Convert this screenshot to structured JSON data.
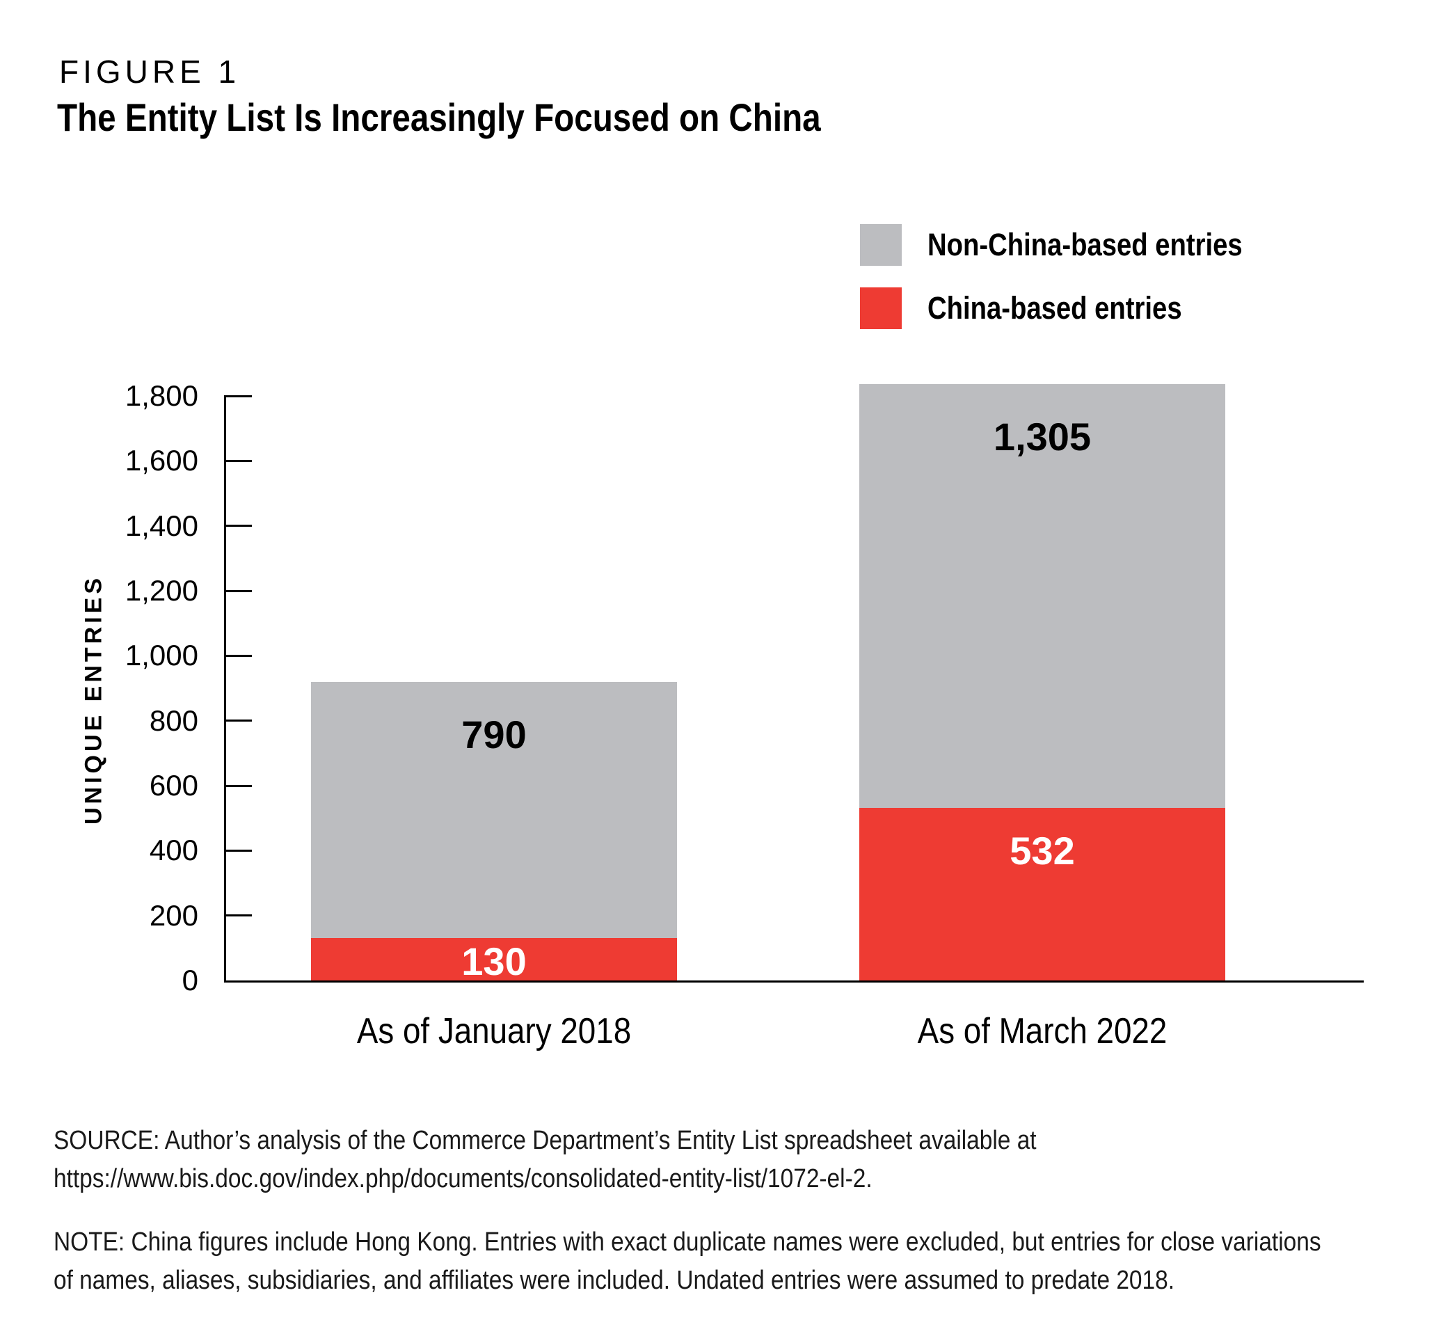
{
  "figure": {
    "kicker": "FIGURE 1",
    "title": "The Entity List Is Increasingly Focused on China"
  },
  "colors": {
    "china_red": "#EE3B33",
    "non_china_gray": "#BCBDC0",
    "axis_black": "#000000",
    "body_text": "#1A1A1A"
  },
  "legend": [
    {
      "label": "Non-China-based entries",
      "color": "#BCBDC0"
    },
    {
      "label": "China-based entries",
      "color": "#EE3B33"
    }
  ],
  "chart_data": {
    "type": "bar",
    "stacked": true,
    "title": "The Entity List Is Increasingly Focused on China",
    "xlabel": "",
    "ylabel": "UNIQUE ENTRIES",
    "ylim": [
      0,
      1800
    ],
    "grid": false,
    "legend_position": "top-right",
    "categories": [
      "As of January 2018",
      "As of March 2022"
    ],
    "series": [
      {
        "name": "China-based entries",
        "key": "china-based",
        "color": "#EE3B33",
        "label_color": "#FFFFFF",
        "values": [
          130,
          532
        ],
        "value_labels": [
          "130",
          "532"
        ]
      },
      {
        "name": "Non-China-based entries",
        "key": "non-china-based",
        "color": "#BCBDC0",
        "label_color": "#000000",
        "values": [
          790,
          1305
        ],
        "value_labels": [
          "790",
          "1,305"
        ]
      }
    ],
    "totals": [
      920,
      1837
    ],
    "yticks": [
      {
        "value": 0,
        "label": "0"
      },
      {
        "value": 200,
        "label": "200"
      },
      {
        "value": 400,
        "label": "400"
      },
      {
        "value": 600,
        "label": "600"
      },
      {
        "value": 800,
        "label": "800"
      },
      {
        "value": 1000,
        "label": "1,000"
      },
      {
        "value": 1200,
        "label": "1,200"
      },
      {
        "value": 1400,
        "label": "1,400"
      },
      {
        "value": 1600,
        "label": "1,600"
      },
      {
        "value": 1800,
        "label": "1,800"
      }
    ]
  },
  "source": {
    "line1": "SOURCE: Author’s analysis of the Commerce Department’s Entity List spreadsheet available at",
    "line2": "https://www.bis.doc.gov/index.php/documents/consolidated-entity-list/1072-el-2."
  },
  "note": {
    "line1": "NOTE: China figures include Hong Kong. Entries with exact duplicate names were excluded, but entries for close variations",
    "line2": "of names, aliases, subsidiaries, and affiliates were included. Undated entries were assumed to predate 2018."
  }
}
